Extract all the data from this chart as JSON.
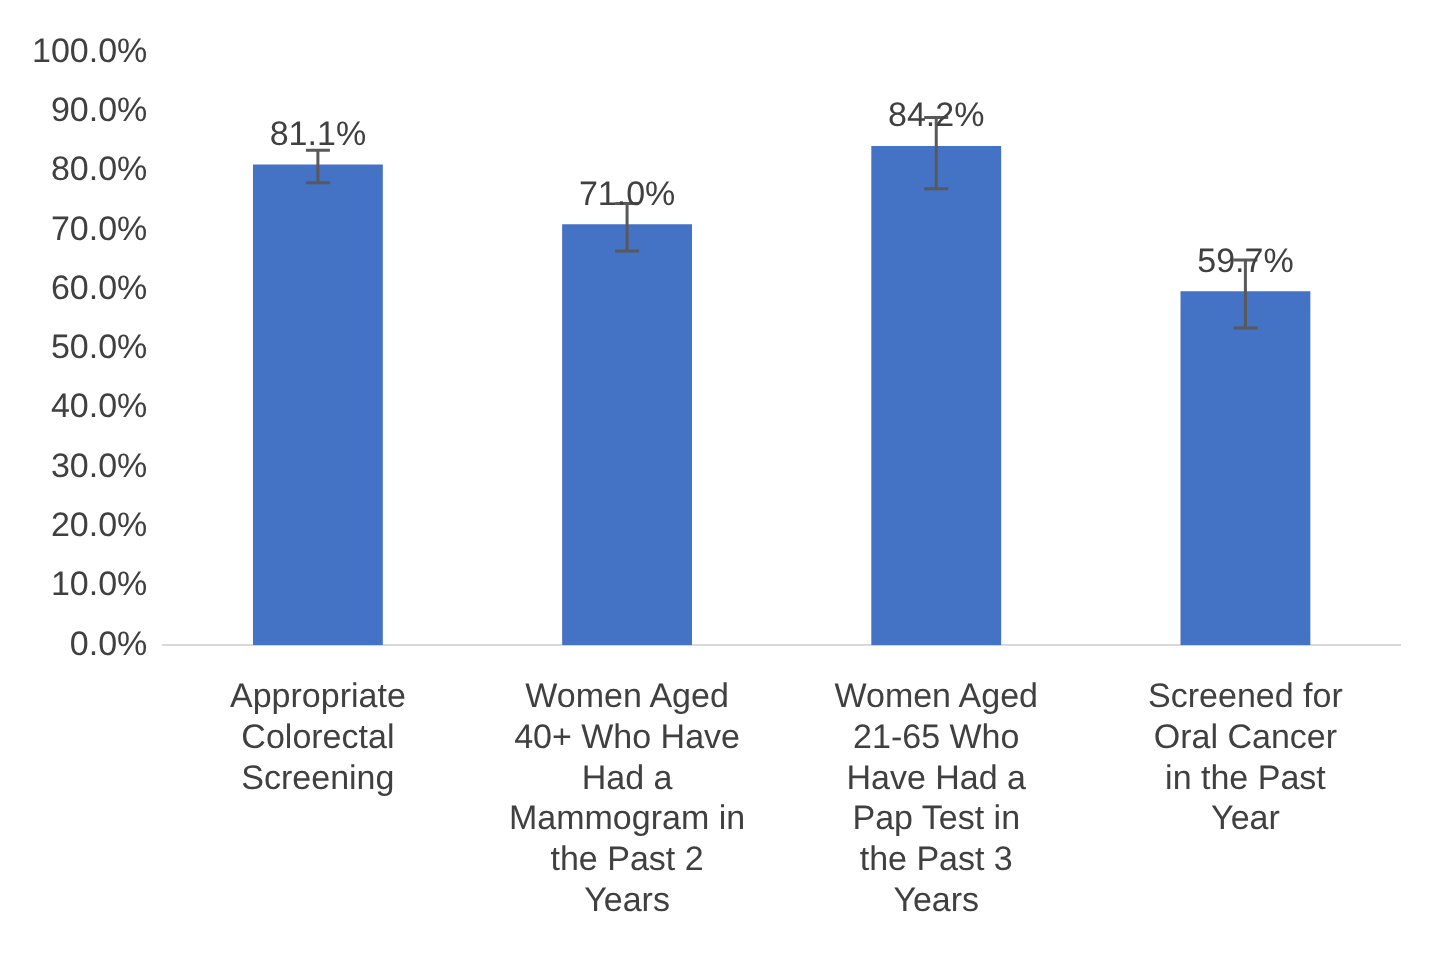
{
  "chart_data": {
    "type": "bar",
    "categories": [
      "Appropriate Colorectal Screening",
      "Women Aged 40+ Who Have Had a Mammogram in the Past 2 Years",
      "Women Aged 21-65 Who Have Had a Pap Test in the Past 3 Years",
      "Screened for Oral Cancer in the Past Year"
    ],
    "values": [
      81.1,
      71.0,
      84.2,
      59.7
    ],
    "errors": [
      [
        78,
        83.5
      ],
      [
        66.5,
        74.5
      ],
      [
        77,
        89
      ],
      [
        53.5,
        65
      ]
    ],
    "color": "#4472c4",
    "ylim": [
      0,
      100
    ],
    "yticks": [
      {
        "value": 0,
        "label": "0.0%"
      },
      {
        "value": 10,
        "label": "10.0%"
      },
      {
        "value": 20,
        "label": "20.0%"
      },
      {
        "value": 30,
        "label": "30.0%"
      },
      {
        "value": 40,
        "label": "40.0%"
      },
      {
        "value": 50,
        "label": "50.0%"
      },
      {
        "value": 60,
        "label": "60.0%"
      },
      {
        "value": 70,
        "label": "70.0%"
      },
      {
        "value": 80,
        "label": "80.0%"
      },
      {
        "value": 90,
        "label": "90.0%"
      },
      {
        "value": 100,
        "label": "100.0%"
      }
    ],
    "value_labels": [
      "81.1%",
      "71.0%",
      "84.2%",
      "59.7%"
    ],
    "grid": false,
    "legend": false
  }
}
